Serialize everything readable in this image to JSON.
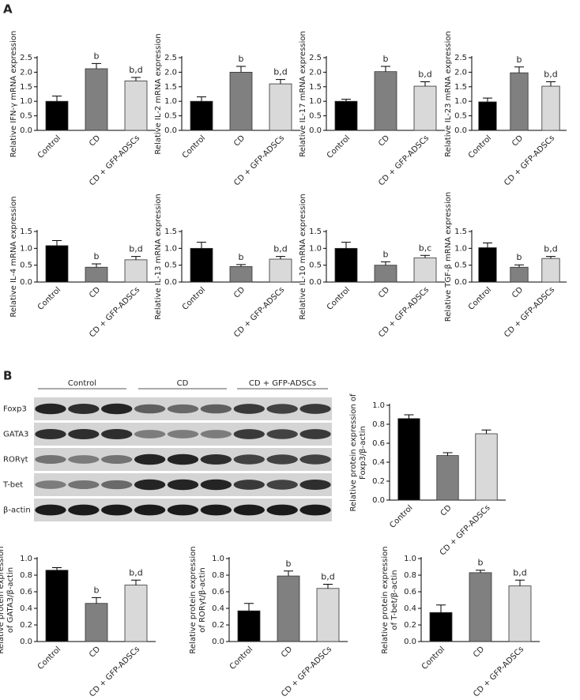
{
  "panels": [
    "A",
    "B"
  ],
  "blot": {
    "groups": [
      "Control",
      "CD",
      "CD + GFP-ADSCs"
    ],
    "proteins": [
      "Foxp3",
      "GATA3",
      "RORγt",
      "T-bet",
      "β-actin"
    ]
  },
  "chart_data": [
    {
      "type": "bar",
      "ylabel": [
        "Relative IFN-γ mRNA expression"
      ],
      "categories": [
        "Control",
        "CD",
        "CD + GFP-ADSCs"
      ],
      "colors": [
        "#000000",
        "#808080",
        "#d9d9d9"
      ],
      "values": [
        1.0,
        2.12,
        1.7
      ],
      "errors": [
        0.18,
        0.18,
        0.12
      ],
      "annotations": [
        null,
        "b",
        "b,d"
      ],
      "ylim": [
        0,
        2.5
      ],
      "yticks": [
        {
          "value": 0,
          "label": "0.0"
        },
        0.5,
        {
          "value": 1,
          "label": "1.0"
        },
        1.5,
        {
          "value": 2,
          "label": "2.0"
        },
        2.5
      ]
    },
    {
      "type": "bar",
      "ylabel": [
        "Relative IL-2 mRNA expression"
      ],
      "categories": [
        "Control",
        "CD",
        "CD + GFP-ADSCs"
      ],
      "colors": [
        "#000000",
        "#808080",
        "#d9d9d9"
      ],
      "values": [
        1.0,
        2.0,
        1.6
      ],
      "errors": [
        0.15,
        0.2,
        0.15
      ],
      "annotations": [
        null,
        "b",
        "b,d"
      ],
      "ylim": [
        0,
        2.5
      ],
      "yticks": [
        {
          "value": 0,
          "label": "0.0"
        },
        0.5,
        {
          "value": 1,
          "label": "1.0"
        },
        1.5,
        {
          "value": 2,
          "label": "2.0"
        },
        2.5
      ]
    },
    {
      "type": "bar",
      "ylabel": [
        "Relative IL-17 mRNA expression"
      ],
      "categories": [
        "Control",
        "CD",
        "CD + GFP-ADSCs"
      ],
      "colors": [
        "#000000",
        "#808080",
        "#d9d9d9"
      ],
      "values": [
        1.0,
        2.02,
        1.52
      ],
      "errors": [
        0.07,
        0.18,
        0.15
      ],
      "annotations": [
        null,
        "b",
        "b,d"
      ],
      "ylim": [
        0,
        2.5
      ],
      "yticks": [
        {
          "value": 0,
          "label": "0.0"
        },
        0.5,
        {
          "value": 1,
          "label": "1.0"
        },
        1.5,
        {
          "value": 2,
          "label": "2.0"
        },
        2.5
      ]
    },
    {
      "type": "bar",
      "ylabel": [
        "Relative IL-23 mRNA expression"
      ],
      "categories": [
        "Control",
        "CD",
        "CD + GFP-ADSCs"
      ],
      "colors": [
        "#000000",
        "#808080",
        "#d9d9d9"
      ],
      "values": [
        0.98,
        1.98,
        1.52
      ],
      "errors": [
        0.13,
        0.2,
        0.15
      ],
      "annotations": [
        null,
        "b",
        "b,d"
      ],
      "ylim": [
        0,
        2.5
      ],
      "yticks": [
        {
          "value": 0,
          "label": "0.0"
        },
        0.5,
        {
          "value": 1,
          "label": "1.0"
        },
        1.5,
        {
          "value": 2,
          "label": "2.0"
        },
        2.5
      ]
    },
    {
      "type": "bar",
      "ylabel": [
        "Relative IL-4 mRNA expression"
      ],
      "categories": [
        "Control",
        "CD",
        "CD + GFP-ADSCs"
      ],
      "colors": [
        "#000000",
        "#808080",
        "#d9d9d9"
      ],
      "values": [
        1.08,
        0.44,
        0.66
      ],
      "errors": [
        0.15,
        0.1,
        0.1
      ],
      "annotations": [
        null,
        "b",
        "b,d"
      ],
      "ylim": [
        0,
        1.5
      ],
      "yticks": [
        {
          "value": 0,
          "label": "0.0"
        },
        0.5,
        {
          "value": 1,
          "label": "1.0"
        },
        1.5
      ]
    },
    {
      "type": "bar",
      "ylabel": [
        "Relative IL-13 mRNA expression"
      ],
      "categories": [
        "Control",
        "CD",
        "CD + GFP-ADSCs"
      ],
      "colors": [
        "#000000",
        "#808080",
        "#d9d9d9"
      ],
      "values": [
        1.0,
        0.46,
        0.68
      ],
      "errors": [
        0.18,
        0.06,
        0.08
      ],
      "annotations": [
        null,
        "b",
        "b,d"
      ],
      "ylim": [
        0,
        1.5
      ],
      "yticks": [
        {
          "value": 0,
          "label": "0.0"
        },
        0.5,
        {
          "value": 1,
          "label": "1.0"
        },
        1.5
      ]
    },
    {
      "type": "bar",
      "ylabel": [
        "Relative IL-10 mRNA expression"
      ],
      "categories": [
        "Control",
        "CD",
        "CD + GFP-ADSCs"
      ],
      "colors": [
        "#000000",
        "#808080",
        "#d9d9d9"
      ],
      "values": [
        1.0,
        0.5,
        0.72
      ],
      "errors": [
        0.18,
        0.1,
        0.07
      ],
      "annotations": [
        null,
        "b",
        "b,c"
      ],
      "ylim": [
        0,
        1.5
      ],
      "yticks": [
        {
          "value": 0,
          "label": "0.0"
        },
        0.5,
        {
          "value": 1,
          "label": "1.0"
        },
        1.5
      ]
    },
    {
      "type": "bar",
      "ylabel": [
        "Relative TGF-β mRNA expression"
      ],
      "categories": [
        "Control",
        "CD",
        "CD + GFP-ADSCs"
      ],
      "colors": [
        "#000000",
        "#808080",
        "#d9d9d9"
      ],
      "values": [
        1.02,
        0.44,
        0.7
      ],
      "errors": [
        0.14,
        0.07,
        0.06
      ],
      "annotations": [
        null,
        "b",
        "b,d"
      ],
      "ylim": [
        0,
        1.5
      ],
      "yticks": [
        {
          "value": 0,
          "label": "0.0"
        },
        0.5,
        {
          "value": 1,
          "label": "1.0"
        },
        1.5
      ]
    },
    {
      "type": "bar",
      "ylabel": [
        "Relative protein expression of",
        "Foxp3/β-actin"
      ],
      "categories": [
        "Control",
        "CD",
        "CD + GFP-ADSCs"
      ],
      "colors": [
        "#000000",
        "#808080",
        "#d9d9d9"
      ],
      "values": [
        0.86,
        0.47,
        0.7
      ],
      "errors": [
        0.04,
        0.03,
        0.04
      ],
      "annotations": [
        null,
        null,
        null
      ],
      "ylim": [
        0,
        1
      ],
      "yticks": [
        {
          "value": 0,
          "label": "0.0"
        },
        0.2,
        0.4,
        0.6,
        0.8,
        {
          "value": 1,
          "label": "1.0"
        }
      ]
    },
    {
      "type": "bar",
      "ylabel": [
        "Relative protein expression",
        "of GATA3/β-actin"
      ],
      "categories": [
        "Control",
        "CD",
        "CD + GFP-ADSCs"
      ],
      "colors": [
        "#000000",
        "#808080",
        "#d9d9d9"
      ],
      "values": [
        0.86,
        0.46,
        0.68
      ],
      "errors": [
        0.03,
        0.07,
        0.06
      ],
      "annotations": [
        null,
        "b",
        "b,d"
      ],
      "ylim": [
        0,
        1
      ],
      "yticks": [
        {
          "value": 0,
          "label": "0.0"
        },
        0.2,
        0.4,
        0.6,
        0.8,
        {
          "value": 1,
          "label": "1.0"
        }
      ]
    },
    {
      "type": "bar",
      "ylabel": [
        "Relative protein expression",
        "of RORγt/β-actin"
      ],
      "categories": [
        "Control",
        "CD",
        "CD + GFP-ADSCs"
      ],
      "colors": [
        "#000000",
        "#808080",
        "#d9d9d9"
      ],
      "values": [
        0.37,
        0.79,
        0.64
      ],
      "errors": [
        0.09,
        0.06,
        0.05
      ],
      "annotations": [
        null,
        "b",
        "b,d"
      ],
      "ylim": [
        0,
        1
      ],
      "yticks": [
        {
          "value": 0,
          "label": "0.0"
        },
        0.2,
        0.4,
        0.6,
        0.8,
        {
          "value": 1,
          "label": "1.0"
        }
      ]
    },
    {
      "type": "bar",
      "ylabel": [
        "Relative protein expression",
        "of T-bet/β-actin"
      ],
      "categories": [
        "Control",
        "CD",
        "CD + GFP-ADSCs"
      ],
      "colors": [
        "#000000",
        "#808080",
        "#d9d9d9"
      ],
      "values": [
        0.35,
        0.83,
        0.67
      ],
      "errors": [
        0.09,
        0.03,
        0.07
      ],
      "annotations": [
        null,
        "b",
        "b,d"
      ],
      "ylim": [
        0,
        1
      ],
      "yticks": [
        {
          "value": 0,
          "label": "0.0"
        },
        0.2,
        0.4,
        0.6,
        0.8,
        {
          "value": 1,
          "label": "1.0"
        }
      ]
    }
  ]
}
